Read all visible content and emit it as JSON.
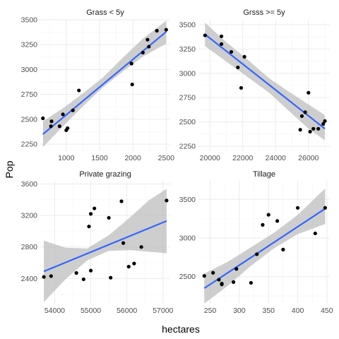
{
  "figure": {
    "xlabel": "hectares",
    "ylabel": "Pop"
  },
  "colors": {
    "point": "#000000",
    "line": "#3366FF",
    "band": "#bdbdbd",
    "grid": "#ebebeb",
    "grid_minor": "#f5f5f5",
    "strip_text": "#1a1a1a",
    "tick_text": "#4d4d4d"
  },
  "chart_data": [
    {
      "type": "scatter",
      "title": "Grass < 5y",
      "xlim": [
        610,
        2560
      ],
      "ylim": [
        2180,
        3500
      ],
      "x_ticks": [
        1000,
        1500,
        2000,
        2500
      ],
      "y_ticks": [
        2250,
        2500,
        2750,
        3000,
        3250,
        3500
      ],
      "points": [
        [
          650,
          2510
        ],
        [
          780,
          2480
        ],
        [
          770,
          2430
        ],
        [
          900,
          2430
        ],
        [
          950,
          2550
        ],
        [
          1000,
          2390
        ],
        [
          1020,
          2410
        ],
        [
          1100,
          2590
        ],
        [
          1190,
          2790
        ],
        [
          1980,
          3060
        ],
        [
          1990,
          2850
        ],
        [
          2150,
          3170
        ],
        [
          2220,
          3300
        ],
        [
          2240,
          3230
        ],
        [
          2360,
          3390
        ],
        [
          2500,
          3400
        ]
      ],
      "fit": {
        "x": [
          650,
          2500
        ],
        "y": [
          2350,
          3380
        ]
      },
      "band": {
        "x": [
          650,
          950,
          1250,
          1550,
          1850,
          2150,
          2500
        ],
        "lower": [
          2220,
          2430,
          2630,
          2820,
          2980,
          3130,
          3260
        ],
        "upper": [
          2480,
          2610,
          2760,
          2920,
          3120,
          3310,
          3490
        ]
      }
    },
    {
      "type": "scatter",
      "title": "Grsss >= 5y",
      "xlim": [
        19300,
        27300
      ],
      "ylim": [
        2200,
        3550
      ],
      "x_ticks": [
        20000,
        22000,
        24000,
        26000
      ],
      "y_ticks": [
        2250,
        2500,
        2750,
        3000,
        3250,
        3500
      ],
      "points": [
        [
          19700,
          3390
        ],
        [
          20700,
          3380
        ],
        [
          20700,
          3300
        ],
        [
          21300,
          3220
        ],
        [
          21700,
          3060
        ],
        [
          21900,
          2850
        ],
        [
          22100,
          3170
        ],
        [
          25500,
          2420
        ],
        [
          25600,
          2560
        ],
        [
          25800,
          2600
        ],
        [
          26000,
          2800
        ],
        [
          26100,
          2400
        ],
        [
          26300,
          2430
        ],
        [
          26600,
          2430
        ],
        [
          26900,
          2480
        ],
        [
          27000,
          2510
        ]
      ],
      "fit": {
        "x": [
          19700,
          27000
        ],
        "y": [
          3400,
          2430
        ]
      },
      "band": {
        "x": [
          19700,
          21000,
          22300,
          23600,
          24900,
          26000,
          27000
        ],
        "lower": [
          3280,
          3120,
          2960,
          2800,
          2600,
          2430,
          2310
        ],
        "upper": [
          3520,
          3320,
          3140,
          2950,
          2800,
          2680,
          2570
        ]
      }
    },
    {
      "type": "scatter",
      "title": "Private grazing",
      "xlim": [
        53600,
        57200
      ],
      "ylim": [
        2080,
        3640
      ],
      "x_ticks": [
        54000,
        55000,
        56000,
        57000
      ],
      "y_ticks": [
        2400,
        2800,
        3200,
        3600
      ],
      "points": [
        [
          53700,
          2420
        ],
        [
          53900,
          2430
        ],
        [
          54600,
          2470
        ],
        [
          54800,
          2390
        ],
        [
          54950,
          3060
        ],
        [
          55000,
          3220
        ],
        [
          55000,
          2500
        ],
        [
          55100,
          3290
        ],
        [
          55500,
          3170
        ],
        [
          55550,
          2410
        ],
        [
          55850,
          3380
        ],
        [
          55900,
          2850
        ],
        [
          56050,
          2550
        ],
        [
          56200,
          2590
        ],
        [
          56400,
          2800
        ],
        [
          57100,
          3390
        ]
      ],
      "fit": {
        "x": [
          53700,
          57100
        ],
        "y": [
          2490,
          3130
        ]
      },
      "band": {
        "x": [
          53700,
          54300,
          54900,
          55500,
          56100,
          56600,
          57100
        ],
        "lower": [
          2100,
          2390,
          2630,
          2750,
          2760,
          2740,
          2720
        ],
        "upper": [
          2880,
          2790,
          2780,
          2950,
          3180,
          3390,
          3540
        ]
      }
    },
    {
      "type": "scatter",
      "title": "Tillage",
      "xlim": [
        230,
        455
      ],
      "ylim": [
        2150,
        3740
      ],
      "x_ticks": [
        250,
        300,
        350,
        400,
        450
      ],
      "y_ticks": [
        2500,
        3000,
        3500
      ],
      "points": [
        [
          240,
          2510
        ],
        [
          255,
          2550
        ],
        [
          265,
          2460
        ],
        [
          270,
          2410
        ],
        [
          270,
          2400
        ],
        [
          290,
          2430
        ],
        [
          295,
          2600
        ],
        [
          320,
          2420
        ],
        [
          330,
          2790
        ],
        [
          340,
          3170
        ],
        [
          350,
          3300
        ],
        [
          365,
          3220
        ],
        [
          375,
          2850
        ],
        [
          400,
          3390
        ],
        [
          430,
          3060
        ],
        [
          447,
          3390
        ]
      ],
      "fit": {
        "x": [
          240,
          447
        ],
        "y": [
          2350,
          3380
        ]
      },
      "band": {
        "x": [
          240,
          280,
          320,
          360,
          400,
          447
        ],
        "lower": [
          2150,
          2380,
          2640,
          2870,
          3050,
          3180
        ],
        "upper": [
          2540,
          2690,
          2880,
          3070,
          3300,
          3640
        ]
      }
    }
  ]
}
